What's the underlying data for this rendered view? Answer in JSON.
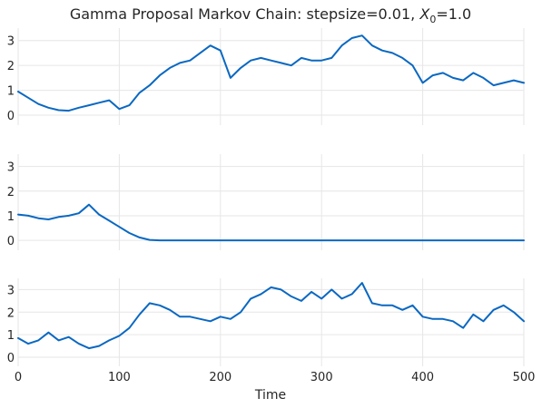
{
  "title": {
    "main": "Gamma Proposal Markov Chain: stepsize=0.01, ",
    "x_sym": "X",
    "x_sub": "0",
    "x_val": "=1.0"
  },
  "colors": {
    "line": "#0a68c2",
    "grid": "#e6e6e6",
    "text": "#262626"
  },
  "chart_data": [
    {
      "type": "line",
      "panel": "top",
      "xlim": [
        0,
        500
      ],
      "ylim": [
        -0.4,
        3.5
      ],
      "yticks": [
        0,
        1,
        2,
        3
      ],
      "grid": true,
      "series": [
        {
          "x": [
            0,
            10,
            20,
            30,
            40,
            50,
            60,
            70,
            80,
            90,
            100,
            110,
            120,
            130,
            140,
            150,
            160,
            170,
            180,
            190,
            200,
            210,
            220,
            230,
            240,
            250,
            260,
            270,
            280,
            290,
            300,
            310,
            320,
            330,
            340,
            350,
            360,
            370,
            380,
            390,
            400,
            410,
            420,
            430,
            440,
            450,
            460,
            470,
            480,
            490,
            500
          ],
          "y": [
            0.95,
            0.7,
            0.45,
            0.3,
            0.2,
            0.18,
            0.3,
            0.4,
            0.5,
            0.6,
            0.25,
            0.4,
            0.9,
            1.2,
            1.6,
            1.9,
            2.1,
            2.2,
            2.5,
            2.8,
            2.6,
            1.5,
            1.9,
            2.2,
            2.3,
            2.2,
            2.1,
            2.0,
            2.3,
            2.2,
            2.2,
            2.3,
            2.8,
            3.1,
            3.2,
            2.8,
            2.6,
            2.5,
            2.3,
            2.0,
            1.3,
            1.6,
            1.7,
            1.5,
            1.4,
            1.7,
            1.5,
            1.2,
            1.3,
            1.4,
            1.3
          ]
        }
      ]
    },
    {
      "type": "line",
      "panel": "middle",
      "xlim": [
        0,
        500
      ],
      "ylim": [
        -0.4,
        3.5
      ],
      "yticks": [
        0,
        1,
        2,
        3
      ],
      "grid": true,
      "series": [
        {
          "x": [
            0,
            10,
            20,
            30,
            40,
            50,
            60,
            70,
            80,
            90,
            100,
            110,
            120,
            130,
            140,
            150,
            200,
            250,
            300,
            350,
            400,
            450,
            500
          ],
          "y": [
            1.05,
            1.0,
            0.9,
            0.85,
            0.95,
            1.0,
            1.1,
            1.45,
            1.05,
            0.8,
            0.55,
            0.3,
            0.12,
            0.02,
            0.0,
            0.0,
            0.0,
            0.0,
            0.0,
            0.0,
            0.0,
            0.0,
            0.0
          ]
        }
      ]
    },
    {
      "type": "line",
      "panel": "bottom",
      "xlim": [
        0,
        500
      ],
      "ylim": [
        -0.4,
        3.5
      ],
      "yticks": [
        0,
        1,
        2,
        3
      ],
      "xticks": [
        0,
        100,
        200,
        300,
        400,
        500
      ],
      "xlabel": "Time",
      "grid": true,
      "series": [
        {
          "x": [
            0,
            10,
            20,
            30,
            40,
            50,
            60,
            70,
            80,
            90,
            100,
            110,
            120,
            130,
            140,
            150,
            160,
            170,
            180,
            190,
            200,
            210,
            220,
            230,
            240,
            250,
            260,
            270,
            280,
            290,
            300,
            310,
            320,
            330,
            340,
            350,
            360,
            370,
            380,
            390,
            400,
            410,
            420,
            430,
            440,
            450,
            460,
            470,
            480,
            490,
            500
          ],
          "y": [
            0.85,
            0.6,
            0.75,
            1.1,
            0.75,
            0.9,
            0.6,
            0.4,
            0.5,
            0.75,
            0.95,
            1.3,
            1.9,
            2.4,
            2.3,
            2.1,
            1.8,
            1.8,
            1.7,
            1.6,
            1.8,
            1.7,
            2.0,
            2.6,
            2.8,
            3.1,
            3.0,
            2.7,
            2.5,
            2.9,
            2.6,
            3.0,
            2.6,
            2.8,
            3.3,
            2.4,
            2.3,
            2.3,
            2.1,
            2.3,
            1.8,
            1.7,
            1.7,
            1.6,
            1.3,
            1.9,
            1.6,
            2.1,
            2.3,
            2.0,
            1.6
          ]
        }
      ]
    }
  ]
}
